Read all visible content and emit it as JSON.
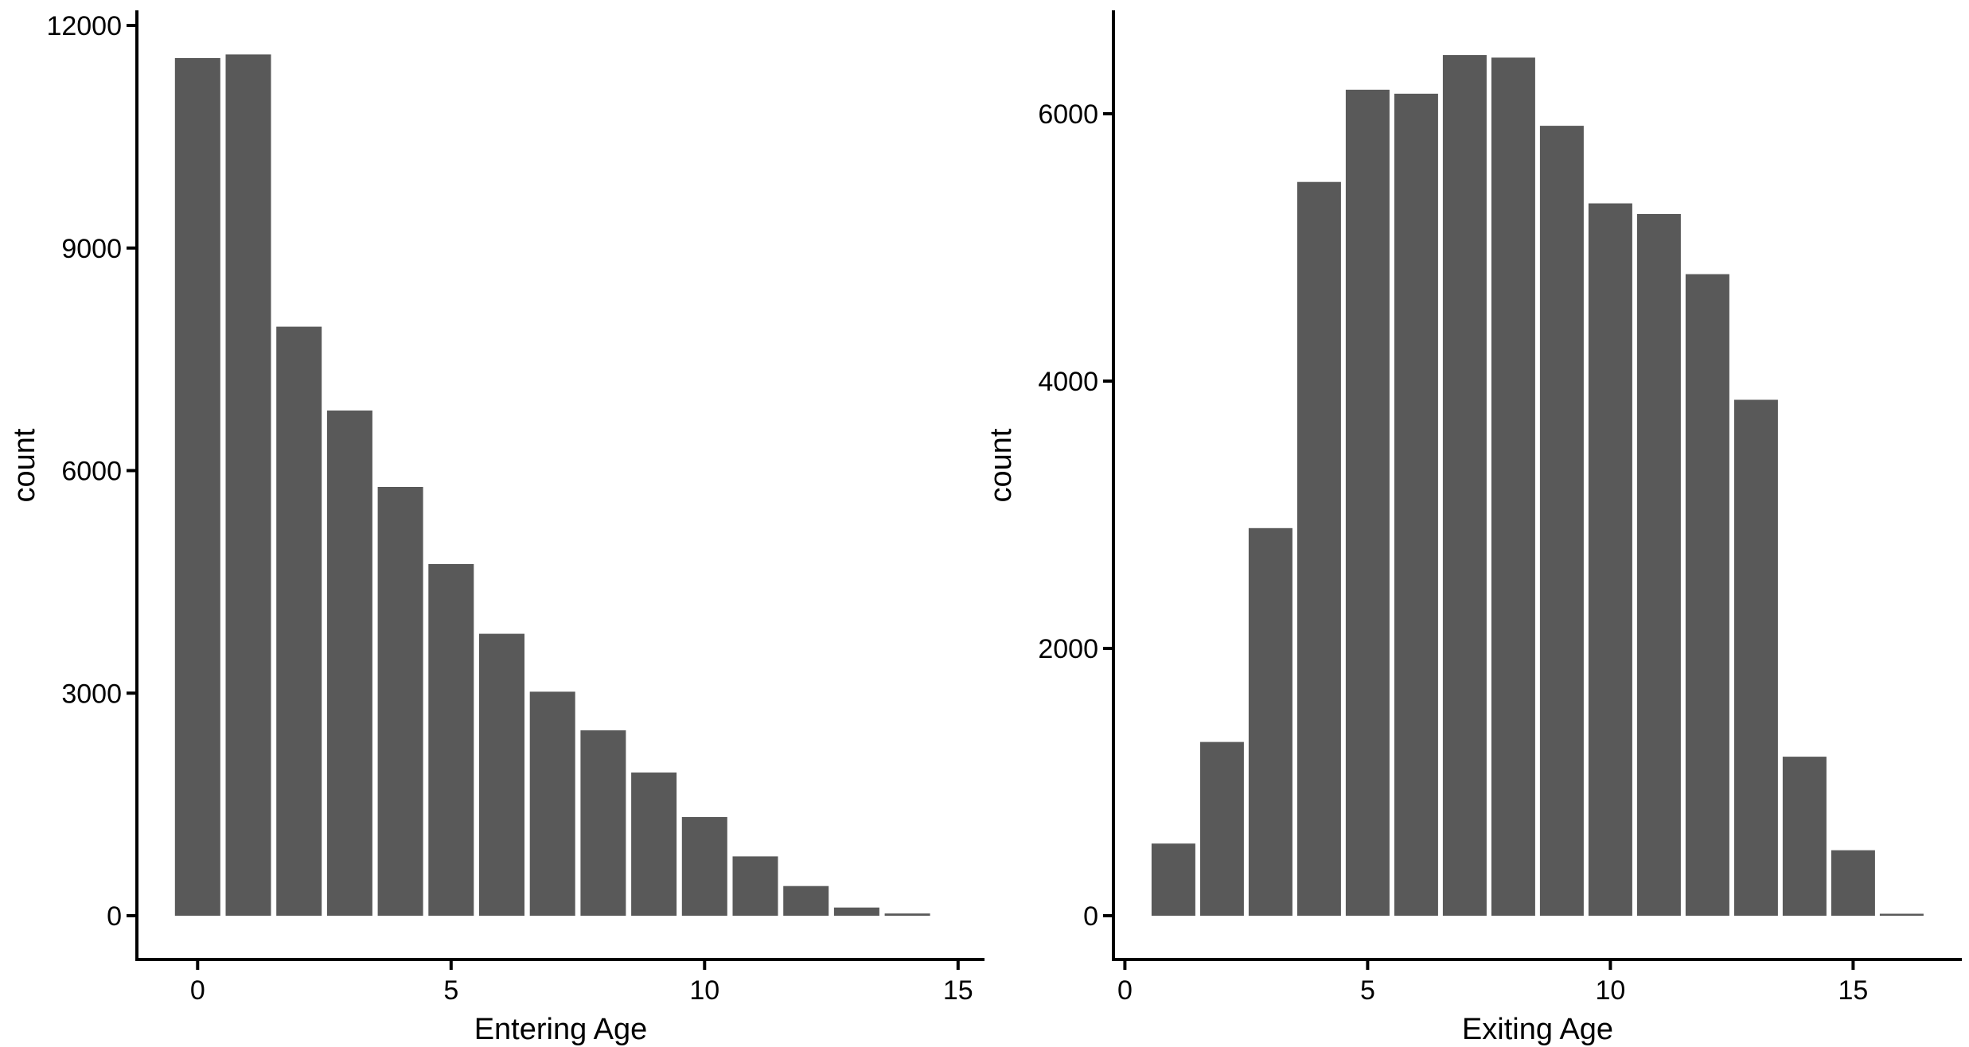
{
  "figure": {
    "background": "#ffffff",
    "bar_color": "#595959",
    "axis_color": "#000000",
    "text_color": "#000000"
  },
  "chart_data": [
    {
      "id": "entering-age-histogram",
      "type": "bar",
      "subtype": "histogram",
      "title": "",
      "xlabel": "Entering Age",
      "ylabel": "count",
      "binwidth": 1,
      "x": [
        0,
        1,
        2,
        3,
        4,
        5,
        6,
        7,
        8,
        9,
        10,
        11,
        12,
        13,
        14
      ],
      "values": [
        11560,
        11610,
        7940,
        6810,
        5780,
        4740,
        3800,
        3020,
        2500,
        1930,
        1330,
        800,
        400,
        110,
        30
      ],
      "x_ticks": [
        0,
        5,
        10,
        15
      ],
      "y_ticks": [
        0,
        3000,
        6000,
        9000,
        12000
      ],
      "xlim": [
        -1.2,
        15.6
      ],
      "ylim": [
        0,
        12180
      ],
      "grid": false,
      "legend_position": "none"
    },
    {
      "id": "exiting-age-histogram",
      "type": "bar",
      "subtype": "histogram",
      "title": "",
      "xlabel": "Exiting Age",
      "ylabel": "count",
      "binwidth": 1,
      "x": [
        1,
        2,
        3,
        4,
        5,
        6,
        7,
        8,
        9,
        10,
        11,
        12,
        13,
        14,
        15,
        16
      ],
      "values": [
        540,
        1300,
        2900,
        5490,
        6180,
        6150,
        6440,
        6420,
        5910,
        5330,
        5250,
        4800,
        3860,
        1190,
        490,
        15
      ],
      "x_ticks": [
        0,
        5,
        10,
        15
      ],
      "y_ticks": [
        0,
        2000,
        4000,
        6000
      ],
      "xlim": [
        -0.25,
        17.2
      ],
      "ylim": [
        0,
        6770
      ],
      "grid": false,
      "legend_position": "none"
    }
  ]
}
